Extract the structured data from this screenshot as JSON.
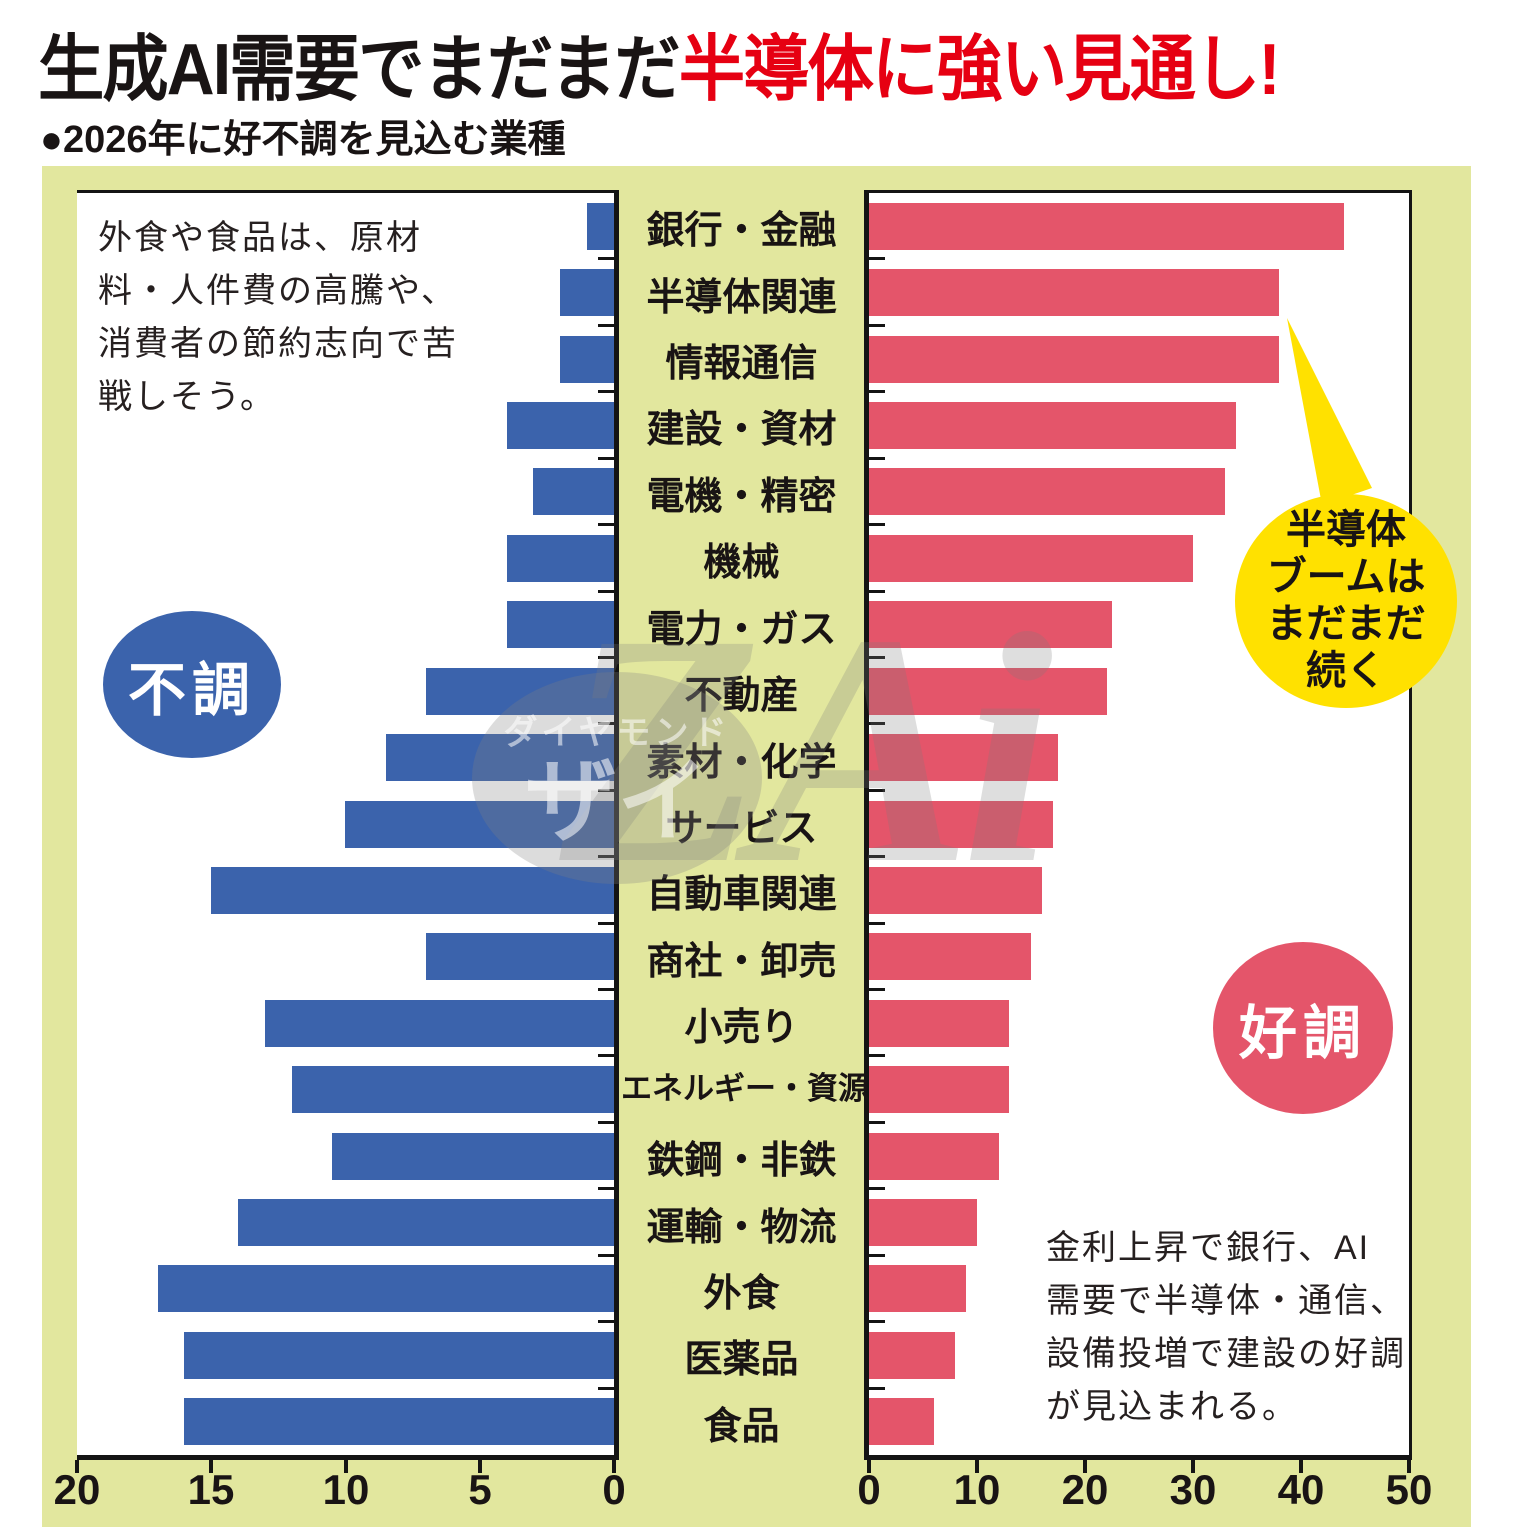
{
  "title": {
    "black": "生成AI需要でまだまだ",
    "red": "半導体に強い見通し!"
  },
  "subtitle": "●2026年に好不調を見込む業種",
  "colors": {
    "bad_blue": "#3b63ac",
    "good_red": "#e4556a",
    "panel_green": "#e2e79e",
    "callout_yellow": "#ffe100",
    "title_red": "#e60012",
    "axis_black": "#141414"
  },
  "chart_data": {
    "type": "bar",
    "orientation": "horizontal-diverging",
    "title": "2026年に好不調を見込む業種",
    "categories": [
      "銀行・金融",
      "半導体関連",
      "情報通信",
      "建設・資材",
      "電機・精密",
      "機械",
      "電力・ガス",
      "不動産",
      "素材・化学",
      "サービス",
      "自動車関連",
      "商社・卸売",
      "小売り",
      "エネルギー・資源",
      "鉄鋼・非鉄",
      "運輸・物流",
      "外食",
      "医薬品",
      "食品"
    ],
    "series": [
      {
        "name": "不調",
        "side": "left",
        "color": "#3b63ac",
        "values": [
          1,
          2,
          2,
          4,
          3,
          4,
          4,
          7,
          8.5,
          10,
          15,
          7,
          13,
          12,
          10.5,
          14,
          17,
          16,
          16
        ]
      },
      {
        "name": "好調",
        "side": "right",
        "color": "#e4556a",
        "values": [
          44,
          38,
          38,
          34,
          33,
          30,
          22.5,
          22,
          17.5,
          17,
          16,
          15,
          13,
          13,
          12,
          10,
          9,
          8,
          6
        ]
      }
    ],
    "left_axis": {
      "tick_labels": [
        "20",
        "15",
        "10",
        "5",
        "0"
      ],
      "tick_values": [
        20,
        15,
        10,
        5,
        0
      ],
      "max": 20
    },
    "right_axis": {
      "tick_labels": [
        "0",
        "10",
        "20",
        "30",
        "40",
        "50"
      ],
      "tick_values": [
        0,
        10,
        20,
        30,
        40,
        50
      ],
      "max": 50
    },
    "grid": false,
    "legend_position": "in-plot-badges"
  },
  "annotations": {
    "left_lines": [
      "外食や食品は、原材",
      "料・人件費の高騰や、",
      "消費者の節約志向で苦",
      "戦しそう。"
    ],
    "right_lines": [
      "金利上昇で銀行、AI",
      "需要で半導体・通信、",
      "設備投増で建設の好調",
      "が見込まれる。"
    ]
  },
  "badges": {
    "bad_label": "不調",
    "good_label": "好調"
  },
  "callout": {
    "lines": [
      "半導体",
      "ブームは",
      "まだまだ",
      "続く"
    ]
  },
  "watermark": {
    "brand": "ダイヤモンド",
    "logo": "ザイ",
    "big": "ZAi"
  }
}
